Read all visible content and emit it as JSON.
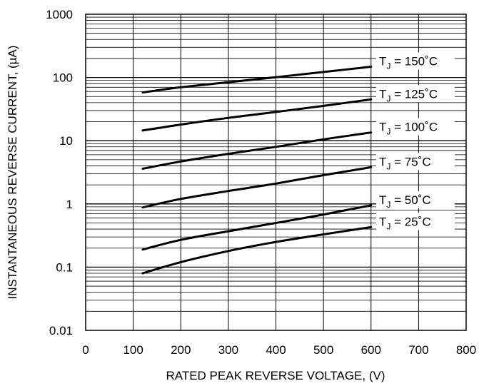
{
  "chart_data": {
    "type": "line",
    "title": "",
    "xlabel": "RATED PEAK REVERSE VOLTAGE, (V)",
    "ylabel": "INSTANTANEOUS REVERSE CURRENT, (µA)",
    "xlim": [
      0,
      800
    ],
    "ylim": [
      0.01,
      1000
    ],
    "yscale": "log",
    "grid": true,
    "x_ticks": [
      "0",
      "100",
      "200",
      "300",
      "400",
      "500",
      "600",
      "700",
      "800"
    ],
    "y_ticks": [
      "0.01",
      "0.1",
      "1",
      "10",
      "100",
      "1000"
    ],
    "line_color": "#000000",
    "series": [
      {
        "name": "T",
        "sub": "J",
        "suffix": " = 150˚C",
        "x": [
          120,
          200,
          300,
          400,
          500,
          600
        ],
        "y": [
          58,
          70,
          84,
          101,
          122,
          148
        ]
      },
      {
        "name": "T",
        "sub": "J",
        "suffix": " = 125˚C",
        "x": [
          120,
          200,
          300,
          400,
          500,
          600
        ],
        "y": [
          14.5,
          18,
          23,
          28.5,
          35.5,
          45
        ]
      },
      {
        "name": "T",
        "sub": "J",
        "suffix": " = 100˚C",
        "x": [
          120,
          200,
          300,
          400,
          500,
          600
        ],
        "y": [
          3.6,
          4.7,
          6.2,
          8,
          10.5,
          13.5
        ]
      },
      {
        "name": "T",
        "sub": "J",
        "suffix": " = 75˚C",
        "x": [
          120,
          200,
          300,
          400,
          500,
          600
        ],
        "y": [
          0.88,
          1.2,
          1.6,
          2.1,
          2.85,
          3.8
        ]
      },
      {
        "name": "T",
        "sub": "J",
        "suffix": " = 50˚C",
        "x": [
          120,
          200,
          300,
          400,
          500,
          600
        ],
        "y": [
          0.19,
          0.27,
          0.37,
          0.5,
          0.68,
          0.95
        ]
      },
      {
        "name": "T",
        "sub": "J",
        "suffix": " = 25˚C",
        "x": [
          120,
          200,
          300,
          400,
          500,
          600
        ],
        "y": [
          0.08,
          0.12,
          0.18,
          0.25,
          0.33,
          0.43
        ]
      }
    ]
  }
}
